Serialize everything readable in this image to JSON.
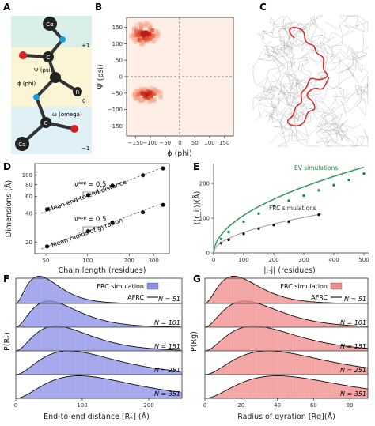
{
  "panels": {
    "A": {
      "label": "A",
      "atoms": {
        "ca_top": "Cα",
        "c_upper": "C",
        "r": "R",
        "c_lower": "C",
        "ca_bottom": "Cα"
      },
      "angles": {
        "psi": "Ψ (psi)",
        "phi": "ϕ (phi)",
        "omega": "ω (omega)"
      },
      "residue_index": {
        "next": "+1",
        "current": "0",
        "prev": "−1"
      }
    },
    "B": {
      "label": "B",
      "xlabel": "ϕ (phi)",
      "ylabel": "Ψ (psi)",
      "xticks": [
        "−150",
        "−100",
        "−50",
        "0",
        "50",
        "100",
        "150"
      ],
      "yticks": [
        "150",
        "100",
        "50",
        "0",
        "−50",
        "−100",
        "−150"
      ]
    },
    "C": {
      "label": "C"
    },
    "D": {
      "label": "D",
      "xlabel": "Chain length (residues)",
      "ylabel": "Dimensions (Å)",
      "xticks": [
        "50",
        "100",
        "200",
        "300"
      ],
      "yticks": [
        "100",
        "80",
        "60",
        "40",
        "20"
      ],
      "nu_sym": "ν",
      "nu_sup": "app",
      "nu_value": "= 0.5",
      "annotation_top": "Mean end-to-end distance",
      "annotation_bottom": "Mean radius of gyration"
    },
    "E": {
      "label": "E",
      "xlabel": "|i-j| (residues)",
      "ylabel": "⟨⟨r_ij⟩⟩(Å)",
      "xticks": [
        "0",
        "100",
        "200",
        "300",
        "400",
        "500"
      ],
      "yticks": [
        "0",
        "100",
        "200"
      ],
      "series_green": "EV simulations",
      "series_black": "FRC simulations"
    },
    "F": {
      "label": "F",
      "xlabel": "End-to-end distance [Rₑ] (Å)",
      "ylabel": "P(Rₑ)",
      "legend_hist": "FRC simulation",
      "legend_line": "AFRC",
      "xticks": [
        "0",
        "100",
        "200"
      ],
      "n_labels": [
        "N = 51",
        "N = 101",
        "N = 151",
        "N = 251",
        "N = 351"
      ],
      "color": "#8a8ee6"
    },
    "G": {
      "label": "G",
      "xlabel": "Radius of gyration [Rg](Å)",
      "ylabel": "P(Rg)",
      "legend_hist": "FRC simulation",
      "legend_line": "AFRC",
      "xticks": [
        "0",
        "20",
        "40",
        "60",
        "80"
      ],
      "n_labels": [
        "N = 51",
        "N = 101",
        "N = 151",
        "N = 251",
        "N = 351"
      ],
      "color": "#f08a8a"
    }
  },
  "chart_data": [
    {
      "type": "heatmap",
      "xlim": [
        -180,
        180
      ],
      "ylim": [
        -180,
        180
      ],
      "xlabel": "ϕ (phi)",
      "ylabel": "Ψ (psi)",
      "hotspots": [
        {
          "phi": -120,
          "psi": 130
        },
        {
          "phi": -110,
          "psi": -55
        }
      ]
    },
    {
      "type": "scatter",
      "log_axes": true,
      "xlabel": "Chain length (residues)",
      "ylabel": "Dimensions (Å)",
      "series": [
        {
          "name": "Mean end-to-end distance",
          "x": [
            51,
            101,
            151,
            251,
            351
          ],
          "y": [
            44,
            62,
            78,
            100,
            118
          ]
        },
        {
          "name": "Mean radius of gyration",
          "x": [
            51,
            101,
            151,
            251,
            351
          ],
          "y": [
            18,
            26,
            32,
            41,
            49
          ]
        }
      ]
    },
    {
      "type": "line",
      "xlabel": "|i-j| (residues)",
      "ylabel": "⟨⟨r_ij⟩⟩(Å)",
      "xlim": [
        0,
        500
      ],
      "ylim": [
        0,
        250
      ],
      "series": [
        {
          "name": "EV simulations",
          "x": [
            25,
            50,
            100,
            150,
            200,
            250,
            300,
            350,
            400,
            450,
            500
          ],
          "y": [
            40,
            60,
            90,
            113,
            135,
            150,
            165,
            180,
            195,
            210,
            228
          ]
        },
        {
          "name": "FRC simulations",
          "x": [
            25,
            50,
            100,
            150,
            200,
            250,
            350
          ],
          "y": [
            28,
            38,
            55,
            70,
            80,
            90,
            110
          ]
        }
      ]
    },
    {
      "type": "area",
      "xlabel": "End-to-end distance [Rₑ] (Å)",
      "xlim": [
        0,
        250
      ],
      "series": [
        {
          "name": "N = 51",
          "peak": 35
        },
        {
          "name": "N = 101",
          "peak": 50
        },
        {
          "name": "N = 151",
          "peak": 60
        },
        {
          "name": "N = 251",
          "peak": 80
        },
        {
          "name": "N = 351",
          "peak": 95
        }
      ]
    },
    {
      "type": "area",
      "xlabel": "Radius of gyration [Rg](Å)",
      "xlim": [
        0,
        90
      ],
      "series": [
        {
          "name": "N = 51",
          "peak": 16
        },
        {
          "name": "N = 101",
          "peak": 22
        },
        {
          "name": "N = 151",
          "peak": 27
        },
        {
          "name": "N = 251",
          "peak": 35
        },
        {
          "name": "N = 351",
          "peak": 40
        }
      ]
    }
  ]
}
